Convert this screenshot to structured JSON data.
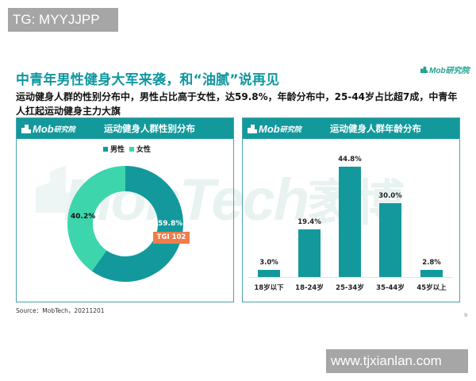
{
  "overlay_tags": {
    "top": "TG: MYYJJPP",
    "bottom": "www.tjxianlan.com"
  },
  "header": {
    "title": "中青年男性健身大军来袭，和“油腻”说再见",
    "brand": "Mob研究院",
    "subtitle": "运动健身人群的性别分布中，男性占比高于女性，达59.8%，年龄分布中，25-44岁占比超7成，中青年人扛起运动健身主力大旗"
  },
  "watermark": {
    "latin": "MobTech",
    "cn": "袤博"
  },
  "panels": {
    "left": {
      "logo_latin": "Mob",
      "logo_cn": "研究院",
      "title": "运动健身人群性别分布"
    },
    "right": {
      "logo_latin": "Mob",
      "logo_cn": "研究院",
      "title": "运动健身人群年龄分布"
    }
  },
  "colors": {
    "teal_primary": "#13999c",
    "mint_secondary": "#3dd6ac",
    "title_teal": "#0f97a0",
    "tgi_orange": "#f07c4a"
  },
  "chart_data": [
    {
      "type": "pie",
      "variant": "donut",
      "title": "运动健身人群性别分布",
      "categories": [
        "男性",
        "女性"
      ],
      "values": [
        59.8,
        40.2
      ],
      "labels": [
        "59.8%",
        "40.2%"
      ],
      "colors": [
        "#13999c",
        "#3dd6ac"
      ],
      "legend": {
        "position": "top",
        "entries": [
          "男性",
          "女性"
        ]
      },
      "annotations": [
        {
          "target": "男性",
          "text": "TGI 102"
        }
      ]
    },
    {
      "type": "bar",
      "title": "运动健身人群年龄分布",
      "categories": [
        "18岁以下",
        "18-24岁",
        "25-34岁",
        "35-44岁",
        "45岁以上"
      ],
      "values": [
        3.0,
        19.4,
        44.8,
        30.0,
        2.8
      ],
      "labels": [
        "3.0%",
        "19.4%",
        "44.8%",
        "30.0%",
        "2.8%"
      ],
      "xlabel": "",
      "ylabel": "",
      "grid": false,
      "color": "#13999c"
    }
  ],
  "footer": {
    "source": "Source：MobTech，20211201",
    "page_number": "9"
  }
}
